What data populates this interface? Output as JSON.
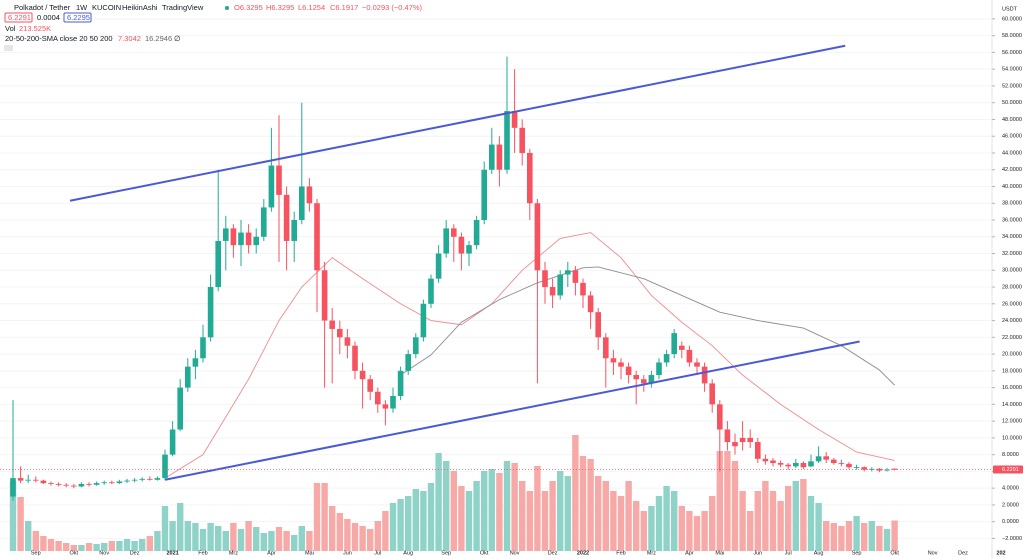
{
  "chart_data": {
    "type": "candlestick",
    "header": {
      "symbol": "Polkadot / Tether",
      "interval": "1W",
      "exchange": "KUCOIN",
      "style": "HeikinAshi",
      "source": "TradingView",
      "o": "O6.3295",
      "h": "H6.3295",
      "l": "L6.1254",
      "c": "C6.1917",
      "change": "−0.0293 (−0.47%)",
      "bid": "6.2291",
      "spread": "0.0004",
      "ask": "6.2295",
      "vol_label": "Vol",
      "vol": "213.525K",
      "sma_label": "20-50-200-SMA close 20 50 200",
      "sma20": "7.3042",
      "sma50": "16.2946",
      "sma200": "∅"
    },
    "currency": "USDT",
    "last_price": {
      "value": 6.2291,
      "label": "6.2291"
    },
    "up_color": "#22ab94",
    "down_color": "#f7525f",
    "volume_up_color": "#8fd3c8",
    "volume_down_color": "#f7a9a7",
    "grid": true,
    "ylim": [
      -3.5,
      61.3
    ],
    "yticks": [
      {
        "value": -2,
        "label": "−2.0000"
      },
      {
        "value": 0,
        "label": "0.0000"
      },
      {
        "value": 2,
        "label": "2.0000"
      },
      {
        "value": 4,
        "label": "4.0000"
      },
      {
        "value": 6,
        "label": "6.0000"
      },
      {
        "value": 8,
        "label": "8.0000"
      },
      {
        "value": 10,
        "label": "10.0000"
      },
      {
        "value": 12,
        "label": "12.0000"
      },
      {
        "value": 14,
        "label": "14.0000"
      },
      {
        "value": 16,
        "label": "16.0000"
      },
      {
        "value": 18,
        "label": "18.0000"
      },
      {
        "value": 20,
        "label": "20.0000"
      },
      {
        "value": 22,
        "label": "22.0000"
      },
      {
        "value": 24,
        "label": "24.0000"
      },
      {
        "value": 26,
        "label": "26.0000"
      },
      {
        "value": 28,
        "label": "28.0000"
      },
      {
        "value": 30,
        "label": "30.0000"
      },
      {
        "value": 32,
        "label": "32.0000"
      },
      {
        "value": 34,
        "label": "34.0000"
      },
      {
        "value": 36,
        "label": "36.0000"
      },
      {
        "value": 38,
        "label": "38.0000"
      },
      {
        "value": 40,
        "label": "40.0000"
      },
      {
        "value": 42,
        "label": "42.0000"
      },
      {
        "value": 44,
        "label": "44.0000"
      },
      {
        "value": 46,
        "label": "46.0000"
      },
      {
        "value": 48,
        "label": "48.0000"
      },
      {
        "value": 50,
        "label": "50.0000"
      },
      {
        "value": 52,
        "label": "52.0000"
      },
      {
        "value": 54,
        "label": "54.0000"
      },
      {
        "value": 56,
        "label": "56.0000"
      },
      {
        "value": 58,
        "label": "58.0000"
      },
      {
        "value": 60,
        "label": "60.0000"
      }
    ],
    "categories": [
      null,
      null,
      null,
      "Sep",
      null,
      null,
      null,
      null,
      "Okt",
      null,
      null,
      null,
      "Nov",
      null,
      null,
      null,
      "Dez",
      null,
      null,
      null,
      null,
      "2021",
      null,
      null,
      null,
      "Feb",
      null,
      null,
      null,
      "Mrz",
      null,
      null,
      null,
      null,
      "Apr",
      null,
      null,
      null,
      null,
      "Mai",
      null,
      null,
      null,
      null,
      "Jun",
      null,
      null,
      null,
      "Jul",
      null,
      null,
      null,
      "Aug",
      null,
      null,
      null,
      null,
      "Sep",
      null,
      null,
      null,
      null,
      "Okt",
      null,
      null,
      null,
      "Nov",
      null,
      null,
      null,
      null,
      "Dez",
      null,
      null,
      null,
      "2022",
      null,
      null,
      null,
      null,
      "Feb",
      null,
      null,
      null,
      "Mrz",
      null,
      null,
      null,
      null,
      "Apr",
      null,
      null,
      null,
      "Mai",
      null,
      null,
      null,
      null,
      "Jun",
      null,
      null,
      null,
      "Jul",
      null,
      null,
      null,
      "Aug",
      null,
      null,
      null,
      null,
      "Sep",
      null,
      null,
      null,
      null,
      "Okt",
      null,
      null,
      null,
      null,
      "Nov",
      null,
      null,
      null,
      "Dez",
      null,
      null,
      null,
      null,
      "202"
    ],
    "ohlc": [
      [
        3.0,
        14.5,
        2.5,
        5.2
      ],
      [
        5.2,
        6.6,
        4.6,
        4.9
      ],
      [
        4.9,
        5.6,
        4.6,
        5.0
      ],
      [
        5.0,
        5.4,
        4.7,
        4.9
      ],
      [
        4.9,
        5.0,
        4.5,
        4.6
      ],
      [
        4.6,
        4.8,
        4.3,
        4.5
      ],
      [
        4.5,
        4.7,
        4.2,
        4.4
      ],
      [
        4.4,
        4.6,
        4.1,
        4.3
      ],
      [
        4.3,
        4.5,
        4.0,
        4.2
      ],
      [
        4.2,
        4.7,
        4.1,
        4.5
      ],
      [
        4.5,
        4.7,
        4.2,
        4.4
      ],
      [
        4.4,
        4.8,
        4.3,
        4.6
      ],
      [
        4.6,
        4.9,
        4.4,
        4.7
      ],
      [
        4.7,
        4.9,
        4.5,
        4.6
      ],
      [
        4.6,
        5.0,
        4.5,
        4.8
      ],
      [
        4.8,
        5.1,
        4.6,
        4.9
      ],
      [
        4.9,
        5.2,
        4.7,
        5.0
      ],
      [
        5.0,
        5.3,
        4.8,
        5.1
      ],
      [
        5.1,
        5.4,
        4.9,
        5.0
      ],
      [
        5.0,
        5.4,
        4.9,
        5.2
      ],
      [
        5.2,
        8.6,
        5.0,
        8.0
      ],
      [
        8.0,
        12.0,
        7.8,
        11.0
      ],
      [
        11.0,
        17.0,
        10.8,
        16.0
      ],
      [
        16.0,
        19.5,
        15.5,
        18.5
      ],
      [
        18.5,
        20.5,
        17.0,
        19.5
      ],
      [
        19.5,
        23.5,
        19.0,
        22.0
      ],
      [
        22.0,
        29.5,
        21.5,
        28.0
      ],
      [
        28.0,
        42.0,
        27.5,
        33.5
      ],
      [
        33.5,
        36.5,
        30.0,
        35.0
      ],
      [
        35.0,
        35.5,
        31.5,
        33.0
      ],
      [
        33.0,
        36.0,
        30.5,
        34.5
      ],
      [
        34.5,
        35.5,
        32.0,
        33.0
      ],
      [
        33.0,
        35.0,
        32.0,
        34.0
      ],
      [
        34.0,
        38.5,
        33.5,
        37.5
      ],
      [
        37.5,
        47.0,
        37.0,
        42.5
      ],
      [
        42.5,
        48.5,
        31.0,
        39.0
      ],
      [
        39.0,
        40.0,
        30.0,
        33.5
      ],
      [
        33.5,
        37.0,
        31.0,
        36.0
      ],
      [
        36.0,
        50.0,
        35.5,
        40.0
      ],
      [
        40.0,
        41.0,
        37.0,
        38.0
      ],
      [
        38.0,
        38.5,
        25.0,
        30.0
      ],
      [
        30.0,
        31.0,
        16.0,
        24.0
      ],
      [
        24.0,
        25.5,
        16.5,
        23.0
      ],
      [
        23.0,
        24.0,
        20.0,
        22.0
      ],
      [
        22.0,
        23.0,
        19.5,
        21.0
      ],
      [
        21.0,
        21.5,
        17.0,
        18.0
      ],
      [
        18.0,
        19.0,
        13.5,
        17.0
      ],
      [
        17.0,
        17.5,
        14.5,
        15.5
      ],
      [
        15.5,
        16.0,
        13.0,
        14.0
      ],
      [
        14.0,
        14.5,
        11.5,
        13.5
      ],
      [
        13.5,
        16.0,
        13.0,
        15.0
      ],
      [
        15.0,
        18.5,
        14.5,
        18.0
      ],
      [
        18.0,
        20.5,
        17.5,
        20.0
      ],
      [
        20.0,
        22.5,
        19.5,
        22.0
      ],
      [
        22.0,
        26.5,
        21.5,
        26.0
      ],
      [
        26.0,
        29.5,
        25.5,
        29.0
      ],
      [
        29.0,
        33.0,
        28.5,
        32.0
      ],
      [
        32.0,
        36.0,
        31.5,
        35.0
      ],
      [
        35.0,
        35.5,
        31.0,
        34.0
      ],
      [
        34.0,
        34.5,
        30.0,
        32.0
      ],
      [
        32.0,
        33.5,
        30.5,
        33.0
      ],
      [
        33.0,
        36.5,
        32.5,
        36.0
      ],
      [
        36.0,
        43.0,
        35.5,
        42.0
      ],
      [
        42.0,
        47.0,
        41.5,
        45.0
      ],
      [
        45.0,
        46.0,
        40.0,
        42.0
      ],
      [
        42.0,
        55.5,
        41.5,
        49.0
      ],
      [
        49.0,
        54.0,
        44.0,
        47.0
      ],
      [
        47.0,
        48.0,
        42.5,
        44.0
      ],
      [
        44.0,
        44.5,
        36.0,
        38.0
      ],
      [
        38.0,
        38.5,
        16.5,
        30.0
      ],
      [
        30.0,
        31.0,
        26.0,
        28.0
      ],
      [
        28.0,
        29.0,
        25.5,
        27.0
      ],
      [
        27.0,
        30.0,
        26.5,
        29.5
      ],
      [
        29.5,
        31.0,
        28.0,
        30.0
      ],
      [
        30.0,
        30.5,
        27.0,
        28.5
      ],
      [
        28.5,
        29.0,
        25.5,
        27.0
      ],
      [
        27.0,
        27.5,
        23.0,
        25.0
      ],
      [
        25.0,
        25.5,
        20.5,
        22.0
      ],
      [
        22.0,
        22.5,
        16.0,
        19.5
      ],
      [
        19.5,
        20.5,
        17.5,
        19.0
      ],
      [
        19.0,
        19.5,
        17.0,
        18.5
      ],
      [
        18.5,
        19.0,
        16.5,
        17.5
      ],
      [
        17.5,
        18.0,
        14.0,
        17.0
      ],
      [
        17.0,
        17.5,
        15.5,
        16.5
      ],
      [
        16.5,
        18.0,
        16.0,
        17.5
      ],
      [
        17.5,
        19.5,
        17.0,
        19.0
      ],
      [
        19.0,
        20.5,
        18.5,
        20.0
      ],
      [
        20.0,
        23.0,
        19.5,
        22.5
      ],
      [
        21.0,
        21.5,
        19.5,
        20.5
      ],
      [
        20.5,
        21.0,
        18.5,
        19.0
      ],
      [
        19.0,
        19.5,
        17.5,
        18.5
      ],
      [
        18.5,
        19.0,
        15.5,
        16.5
      ],
      [
        16.5,
        17.0,
        13.0,
        14.0
      ],
      [
        14.0,
        14.5,
        6.0,
        11.0
      ],
      [
        11.0,
        12.0,
        8.5,
        9.5
      ],
      [
        9.5,
        10.5,
        8.0,
        9.0
      ],
      [
        10.0,
        12.0,
        8.5,
        9.5
      ],
      [
        10.0,
        11.0,
        8.8,
        9.5
      ],
      [
        9.5,
        10.0,
        7.0,
        7.5
      ],
      [
        7.5,
        8.0,
        6.8,
        7.2
      ],
      [
        7.3,
        7.6,
        6.6,
        7.0
      ],
      [
        7.0,
        7.3,
        6.5,
        6.8
      ],
      [
        6.8,
        7.0,
        6.2,
        6.6
      ],
      [
        6.6,
        7.5,
        6.4,
        7.0
      ],
      [
        7.0,
        7.2,
        6.3,
        6.5
      ],
      [
        6.6,
        8.0,
        6.5,
        7.2
      ],
      [
        7.2,
        9.0,
        7.0,
        7.8
      ],
      [
        7.8,
        8.3,
        7.0,
        7.4
      ],
      [
        7.4,
        7.6,
        6.8,
        7.0
      ],
      [
        7.0,
        7.4,
        6.6,
        6.9
      ],
      [
        6.9,
        7.1,
        6.3,
        6.5
      ],
      [
        6.5,
        6.8,
        6.2,
        6.5
      ],
      [
        6.5,
        6.6,
        6.0,
        6.2
      ],
      [
        6.3,
        6.5,
        6.0,
        6.3
      ],
      [
        6.3,
        6.4,
        5.9,
        6.1
      ],
      [
        6.2,
        6.4,
        6.0,
        6.2
      ],
      [
        6.3295,
        6.3295,
        6.1254,
        6.1917
      ],
      null,
      null,
      null,
      null,
      null,
      null,
      null,
      null,
      null,
      null,
      null,
      null,
      null,
      null
    ],
    "volume": [
      490,
      378,
      210,
      140,
      105,
      84,
      70,
      56,
      42,
      42,
      56,
      49,
      56,
      70,
      70,
      84,
      70,
      84,
      105,
      140,
      315,
      210,
      336,
      210,
      196,
      154,
      196,
      175,
      140,
      196,
      154,
      210,
      168,
      126,
      140,
      168,
      140,
      112,
      175,
      140,
      476,
      476,
      315,
      266,
      224,
      196,
      175,
      154,
      210,
      280,
      336,
      364,
      385,
      434,
      420,
      476,
      686,
      630,
      560,
      455,
      420,
      490,
      560,
      574,
      546,
      630,
      616,
      490,
      420,
      595,
      420,
      490,
      560,
      525,
      812,
      665,
      644,
      525,
      490,
      420,
      385,
      490,
      350,
      280,
      315,
      385,
      455,
      420,
      315,
      280,
      245,
      280,
      385,
      700,
      700,
      630,
      420,
      280,
      420,
      490,
      420,
      350,
      455,
      490,
      504,
      385,
      336,
      210,
      196,
      175,
      210,
      245,
      196,
      210,
      175,
      154,
      213.525,
      null,
      null,
      null,
      null,
      null,
      null,
      null,
      null,
      null,
      null,
      null,
      null,
      null,
      null
    ],
    "sma": [
      {
        "color": "#f28a8c",
        "x": [
          20,
          25,
          31,
          35,
          38,
          42,
          46,
          51,
          55,
          59,
          63,
          67,
          72,
          76,
          80,
          84,
          88,
          92,
          96,
          101,
          106,
          111,
          116
        ],
        "values": [
          5.2,
          8.0,
          17.0,
          24.0,
          28.0,
          31.5,
          29.0,
          26.0,
          24.0,
          23.5,
          26.0,
          30.0,
          33.8,
          34.5,
          31.5,
          27.0,
          23.8,
          21.0,
          17.5,
          14.0,
          11.0,
          8.3,
          7.3042
        ]
      },
      {
        "color": "#8c8c8c",
        "x": [
          51,
          55,
          59,
          64,
          69,
          75,
          77,
          83,
          88,
          93,
          98,
          104,
          109,
          114,
          116
        ],
        "values": [
          17.5,
          19.9,
          23.8,
          26.5,
          28.5,
          30.3,
          30.4,
          29.0,
          27.0,
          25.0,
          24.0,
          23.1,
          21.0,
          18.1,
          16.2946
        ]
      }
    ],
    "trendlines": [
      {
        "color": "#4a5ad6",
        "x": [
          7.5,
          109.5
        ],
        "y": [
          38.3,
          56.8
        ]
      },
      {
        "color": "#4a5ad6",
        "x": [
          20,
          111.4
        ],
        "y": [
          5.0,
          21.5
        ]
      }
    ]
  }
}
